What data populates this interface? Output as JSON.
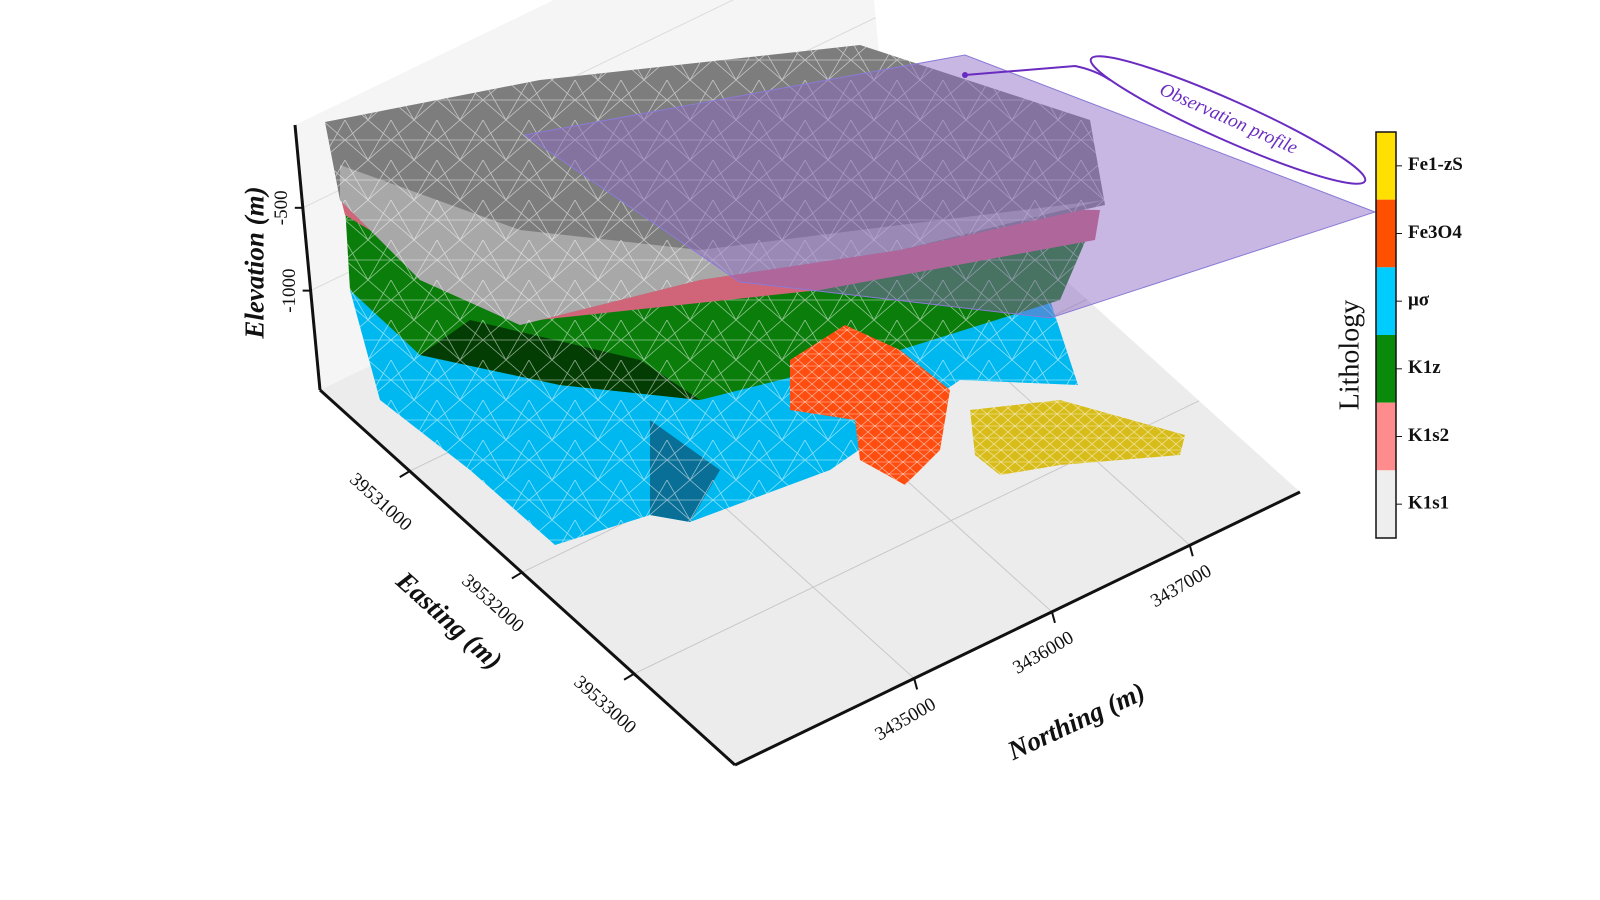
{
  "chart_data": {
    "type": "3d-model",
    "xlabel": "Easting (m)",
    "ylabel": "Northing (m)",
    "zlabel": "Elevation (m)",
    "xlim": [
      39530200,
      39533900
    ],
    "xticks": [
      39531000,
      39532000,
      39533000
    ],
    "ylim": [
      3433700,
      3437800
    ],
    "yticks": [
      3435000,
      3436000,
      3437000
    ],
    "zlim": [
      -1600,
      0
    ],
    "zticks": [
      -500,
      -1000
    ],
    "legend_title": "Lithology",
    "legend": [
      {
        "name": "Fe1-zS",
        "color": "#ffe000"
      },
      {
        "name": "Fe3O4",
        "color": "#ff5000"
      },
      {
        "name": "μσ",
        "color": "#00ccff"
      },
      {
        "name": "K1z",
        "color": "#0a8a0a"
      },
      {
        "name": "K1s2",
        "color": "#ff8c8c"
      },
      {
        "name": "K1s1",
        "color": "#eeeeee"
      }
    ],
    "annotation": "Observation profile"
  }
}
